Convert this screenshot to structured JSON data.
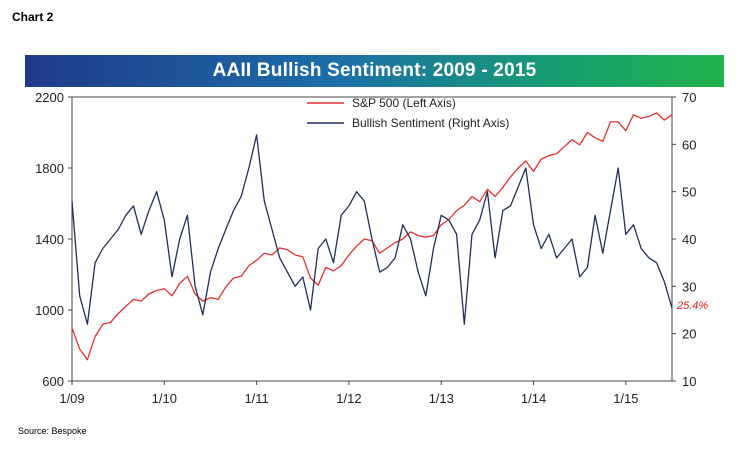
{
  "header": {
    "chart_label": "Chart 2"
  },
  "footer": {
    "source": "Source:  Bespoke"
  },
  "colors": {
    "sp500": "#e83030",
    "bullish": "#1f2f5c"
  },
  "chart_data": {
    "type": "line",
    "title": "AAII Bullish Sentiment: 2009 - 2015",
    "xlabel": "",
    "ylabel_left": "",
    "ylabel_right": "",
    "x_ticks": [
      "1/09",
      "1/10",
      "1/11",
      "1/12",
      "1/13",
      "1/14",
      "1/15"
    ],
    "x_range": [
      "1/09",
      "7/15"
    ],
    "ylim_left": [
      600,
      2200
    ],
    "yticks_left": [
      600,
      1000,
      1400,
      1800,
      2200
    ],
    "ylim_right": [
      10,
      70
    ],
    "yticks_right": [
      10,
      20,
      30,
      40,
      50,
      60,
      70
    ],
    "legend_placement": "top-center",
    "grid": false,
    "annotation": "25.4%",
    "series": [
      {
        "name": "S&P 500 (Left Axis)",
        "axis": "left",
        "x": [
          "1/09",
          "2/09",
          "3/09",
          "4/09",
          "5/09",
          "6/09",
          "7/09",
          "8/09",
          "9/09",
          "10/09",
          "11/09",
          "12/09",
          "1/10",
          "2/10",
          "3/10",
          "4/10",
          "5/10",
          "6/10",
          "7/10",
          "8/10",
          "9/10",
          "10/10",
          "11/10",
          "12/10",
          "1/11",
          "2/11",
          "3/11",
          "4/11",
          "5/11",
          "6/11",
          "7/11",
          "8/11",
          "9/11",
          "10/11",
          "11/11",
          "12/11",
          "1/12",
          "2/12",
          "3/12",
          "4/12",
          "5/12",
          "6/12",
          "7/12",
          "8/12",
          "9/12",
          "10/12",
          "11/12",
          "12/12",
          "1/13",
          "2/13",
          "3/13",
          "4/13",
          "5/13",
          "6/13",
          "7/13",
          "8/13",
          "9/13",
          "10/13",
          "11/13",
          "12/13",
          "1/14",
          "2/14",
          "3/14",
          "4/14",
          "5/14",
          "6/14",
          "7/14",
          "8/14",
          "9/14",
          "10/14",
          "11/14",
          "12/14",
          "1/15",
          "2/15",
          "3/15",
          "4/15",
          "5/15",
          "6/15",
          "7/15"
        ],
        "values": [
          900,
          780,
          720,
          850,
          920,
          930,
          980,
          1020,
          1060,
          1050,
          1090,
          1110,
          1120,
          1080,
          1150,
          1190,
          1090,
          1050,
          1070,
          1060,
          1130,
          1180,
          1190,
          1250,
          1280,
          1320,
          1310,
          1350,
          1340,
          1310,
          1300,
          1180,
          1140,
          1240,
          1220,
          1250,
          1310,
          1360,
          1400,
          1390,
          1320,
          1350,
          1380,
          1400,
          1440,
          1420,
          1410,
          1420,
          1480,
          1510,
          1560,
          1590,
          1640,
          1610,
          1680,
          1640,
          1690,
          1750,
          1800,
          1840,
          1780,
          1850,
          1870,
          1880,
          1920,
          1960,
          1930,
          2000,
          1970,
          1950,
          2060,
          2060,
          2010,
          2100,
          2080,
          2090,
          2110,
          2070,
          2100
        ]
      },
      {
        "name": "Bullish Sentiment (Right Axis)",
        "axis": "right",
        "x": [
          "1/09",
          "2/09",
          "3/09",
          "4/09",
          "5/09",
          "6/09",
          "7/09",
          "8/09",
          "9/09",
          "10/09",
          "11/09",
          "12/09",
          "1/10",
          "2/10",
          "3/10",
          "4/10",
          "5/10",
          "6/10",
          "7/10",
          "8/10",
          "9/10",
          "10/10",
          "11/10",
          "12/10",
          "1/11",
          "2/11",
          "3/11",
          "4/11",
          "5/11",
          "6/11",
          "7/11",
          "8/11",
          "9/11",
          "10/11",
          "11/11",
          "12/11",
          "1/12",
          "2/12",
          "3/12",
          "4/12",
          "5/12",
          "6/12",
          "7/12",
          "8/12",
          "9/12",
          "10/12",
          "11/12",
          "12/12",
          "1/13",
          "2/13",
          "3/13",
          "4/13",
          "5/13",
          "6/13",
          "7/13",
          "8/13",
          "9/13",
          "10/13",
          "11/13",
          "12/13",
          "1/14",
          "2/14",
          "3/14",
          "4/14",
          "5/14",
          "6/14",
          "7/14",
          "8/14",
          "9/14",
          "10/14",
          "11/14",
          "12/14",
          "1/15",
          "2/15",
          "3/15",
          "4/15",
          "5/15",
          "6/15",
          "7/15"
        ],
        "values": [
          48,
          28,
          22,
          35,
          38,
          40,
          42,
          45,
          47,
          41,
          46,
          50,
          44,
          32,
          40,
          45,
          30,
          24,
          33,
          38,
          42,
          46,
          49,
          55,
          62,
          48,
          42,
          36,
          33,
          30,
          32,
          25,
          38,
          40,
          35,
          45,
          47,
          50,
          48,
          40,
          33,
          34,
          36,
          43,
          40,
          33,
          28,
          38,
          45,
          44,
          41,
          22,
          41,
          44,
          50,
          36,
          46,
          47,
          51,
          55,
          43,
          38,
          41,
          36,
          38,
          40,
          32,
          34,
          45,
          37,
          46,
          55,
          41,
          43,
          38,
          36,
          35,
          31,
          25.4
        ]
      }
    ]
  }
}
